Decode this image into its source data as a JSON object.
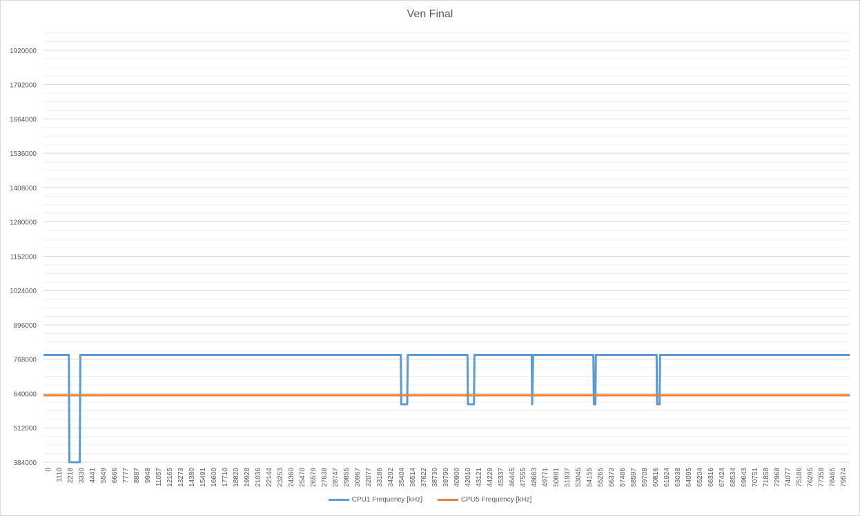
{
  "chart_data": {
    "type": "line",
    "title": "Ven Final",
    "ylim": [
      384000,
      1984000
    ],
    "y_ticks": [
      384000,
      512000,
      640000,
      768000,
      896000,
      1024000,
      1152000,
      1280000,
      1408000,
      1536000,
      1664000,
      1792000,
      1920000
    ],
    "x_ticks": [
      0,
      1110,
      2218,
      3330,
      4441,
      5549,
      6666,
      7777,
      8887,
      9948,
      11057,
      12165,
      13273,
      14380,
      15491,
      16600,
      17710,
      18820,
      19928,
      21036,
      22144,
      23253,
      24360,
      25470,
      26579,
      27638,
      28747,
      29855,
      30967,
      32077,
      33186,
      34292,
      35404,
      36514,
      37622,
      38730,
      39790,
      40900,
      42010,
      43121,
      44229,
      45337,
      46445,
      47555,
      48663,
      49771,
      50881,
      51937,
      53045,
      54155,
      55265,
      56373,
      57486,
      58597,
      59708,
      60816,
      61924,
      63038,
      64095,
      65204,
      66316,
      67424,
      68534,
      69643,
      70751,
      71858,
      72968,
      74077,
      75186,
      76295,
      77358,
      78465,
      79574
    ],
    "xlim": [
      0,
      81000
    ],
    "grid": true,
    "legend_position": "bottom",
    "series": [
      {
        "name": "CPU1 Frequency [kHz]",
        "color": "#5b9bd5",
        "x": [
          0,
          2550,
          2600,
          3650,
          3700,
          35900,
          35950,
          36550,
          36600,
          42600,
          42650,
          43250,
          43300,
          49050,
          49100,
          49200,
          49250,
          55250,
          55300,
          55450,
          55500,
          61600,
          61650,
          61900,
          61950,
          81000
        ],
        "y": [
          784000,
          784000,
          384000,
          384000,
          784000,
          784000,
          600000,
          600000,
          784000,
          784000,
          600000,
          600000,
          784000,
          784000,
          600000,
          784000,
          784000,
          784000,
          600000,
          600000,
          784000,
          784000,
          600000,
          600000,
          784000,
          784000
        ]
      },
      {
        "name": "CPU5 Frequency [kHz]",
        "color": "#ed7d31",
        "x": [
          0,
          81000
        ],
        "y": [
          633600,
          633600
        ]
      }
    ]
  }
}
